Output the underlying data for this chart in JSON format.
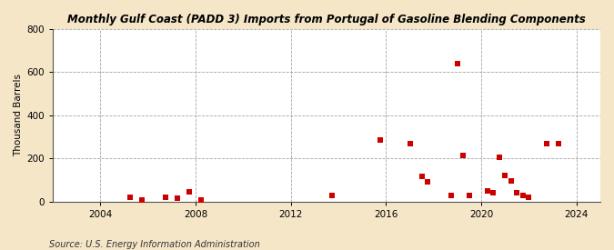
{
  "title": "Monthly Gulf Coast (PADD 3) Imports from Portugal of Gasoline Blending Components",
  "ylabel": "Thousand Barrels",
  "source": "Source: U.S. Energy Information Administration",
  "figure_bg_color": "#f5e6c8",
  "plot_bg_color": "#ffffff",
  "marker_color": "#cc0000",
  "marker_size": 18,
  "ylim": [
    0,
    800
  ],
  "yticks": [
    0,
    200,
    400,
    600,
    800
  ],
  "xlim_start": 2002.0,
  "xlim_end": 2025.0,
  "xticks": [
    2004,
    2008,
    2012,
    2016,
    2020,
    2024
  ],
  "data_points": [
    [
      2005.25,
      20
    ],
    [
      2005.75,
      8
    ],
    [
      2006.75,
      18
    ],
    [
      2007.25,
      15
    ],
    [
      2007.75,
      45
    ],
    [
      2008.25,
      8
    ],
    [
      2013.75,
      28
    ],
    [
      2015.75,
      285
    ],
    [
      2017.0,
      270
    ],
    [
      2017.5,
      115
    ],
    [
      2017.75,
      90
    ],
    [
      2018.75,
      28
    ],
    [
      2019.0,
      640
    ],
    [
      2019.25,
      215
    ],
    [
      2019.5,
      28
    ],
    [
      2020.25,
      50
    ],
    [
      2020.5,
      40
    ],
    [
      2020.75,
      205
    ],
    [
      2021.0,
      120
    ],
    [
      2021.25,
      95
    ],
    [
      2021.5,
      40
    ],
    [
      2021.75,
      28
    ],
    [
      2022.0,
      22
    ],
    [
      2022.75,
      270
    ],
    [
      2023.25,
      270
    ]
  ]
}
